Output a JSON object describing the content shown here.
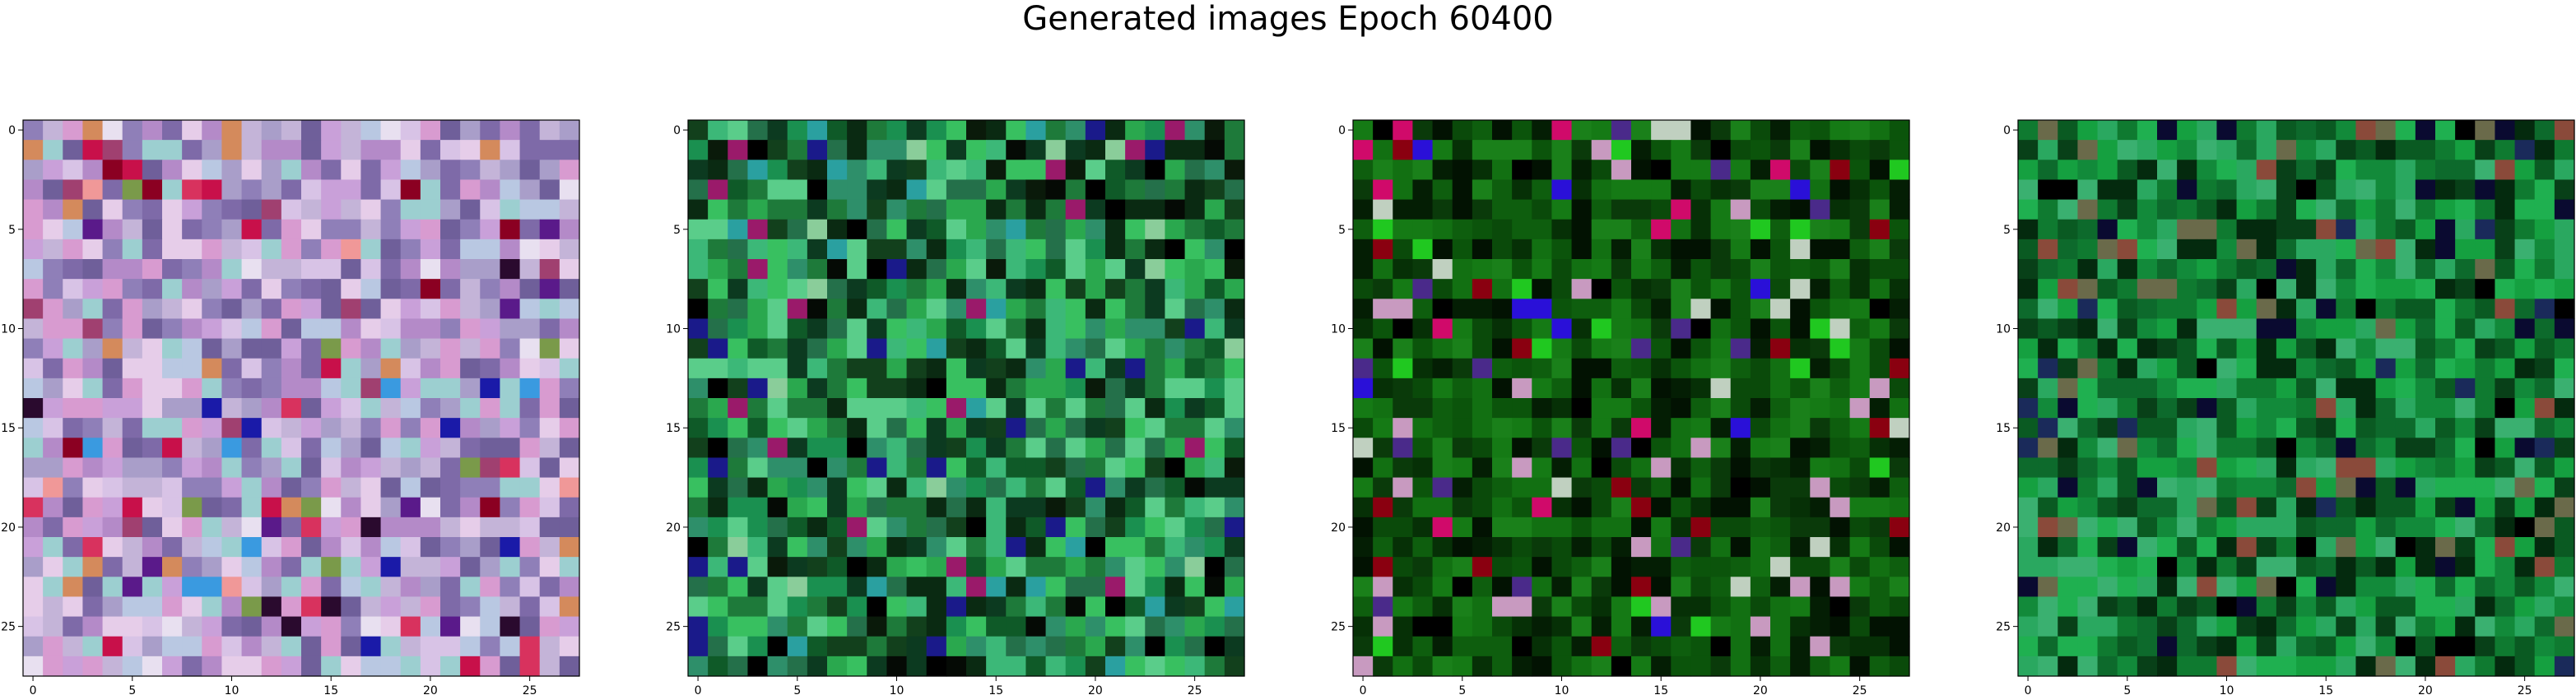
{
  "figure": {
    "title": "Generated images Epoch 60400"
  },
  "chart_data": [
    {
      "type": "heatmap",
      "title": "",
      "xlabel": "",
      "ylabel": "",
      "grid_size": 28,
      "xlim": [
        -0.5,
        27.5
      ],
      "ylim": [
        27.5,
        -0.5
      ],
      "xticks": [
        0,
        5,
        10,
        15,
        20,
        25
      ],
      "yticks": [
        0,
        5,
        10,
        15,
        20,
        25
      ],
      "palette": [
        "#c4b4d8",
        "#a99ec9",
        "#d8c3e6",
        "#8f7fb8",
        "#b48ac8",
        "#e6cde9",
        "#9ccfd0",
        "#7e6aa8",
        "#c9a0d9",
        "#b9c8e2",
        "#d89bd0",
        "#6f5f9a"
      ],
      "accent_colors": [
        "#8b0022",
        "#c8104a",
        "#e8e0f0",
        "#2a0a2e",
        "#1a1aa8",
        "#d8325e",
        "#a04070",
        "#f09898",
        "#d48a5c",
        "#7a9a4a",
        "#3a9ae0",
        "#5a1a8a"
      ],
      "colors_note_seed": 11
    },
    {
      "type": "heatmap",
      "title": "",
      "xlabel": "",
      "ylabel": "",
      "grid_size": 28,
      "xlim": [
        -0.5,
        27.5
      ],
      "ylim": [
        27.5,
        -0.5
      ],
      "xticks": [
        0,
        5,
        10,
        15,
        20,
        25
      ],
      "yticks": [
        0,
        5,
        10,
        15,
        20,
        25
      ],
      "palette": [
        "#1e7a3a",
        "#2aa84e",
        "#0f5a28",
        "#38c060",
        "#12401c",
        "#1a9050",
        "#3cb878",
        "#0a2a12",
        "#24704a",
        "#5acd8a",
        "#0c3a20",
        "#2e8f6a"
      ],
      "accent_colors": [
        "#000000",
        "#050a05",
        "#0a1a0a",
        "#1a1a8a",
        "#9a1a6a",
        "#2aa0a0",
        "#8acd9a"
      ],
      "colors_note_seed": 23
    },
    {
      "type": "heatmap",
      "title": "",
      "xlabel": "",
      "ylabel": "",
      "grid_size": 28,
      "xlim": [
        -0.5,
        27.5
      ],
      "ylim": [
        27.5,
        -0.5
      ],
      "xticks": [
        0,
        5,
        10,
        15,
        20,
        25
      ],
      "yticks": [
        0,
        5,
        10,
        15,
        20,
        25
      ],
      "palette": [
        "#0a4a0a",
        "#0e5e0e",
        "#063006",
        "#127012",
        "#041e04",
        "#0a3a0a",
        "#157a15",
        "#021202",
        "#0b540b",
        "#1a801a"
      ],
      "accent_colors": [
        "#000000",
        "#2a10d8",
        "#d00a6a",
        "#c89ac0",
        "#8a0010",
        "#20c820",
        "#c0d0c0",
        "#4a2a8a"
      ],
      "colors_note_seed": 37
    },
    {
      "type": "heatmap",
      "title": "",
      "xlabel": "",
      "ylabel": "",
      "grid_size": 28,
      "xlim": [
        -0.5,
        27.5
      ],
      "ylim": [
        27.5,
        -0.5
      ],
      "xticks": [
        0,
        5,
        10,
        15,
        20,
        25
      ],
      "yticks": [
        0,
        5,
        10,
        15,
        20,
        25
      ],
      "palette": [
        "#0f7a30",
        "#15a040",
        "#0a5a22",
        "#1fb050",
        "#084018",
        "#128a3a",
        "#2aa860",
        "#042a0e",
        "#0d6a2c",
        "#3ab070"
      ],
      "accent_colors": [
        "#000000",
        "#0a0a30",
        "#8a4a3a",
        "#6a6a4a",
        "#1a2a5a"
      ],
      "colors_note_seed": 53
    }
  ]
}
